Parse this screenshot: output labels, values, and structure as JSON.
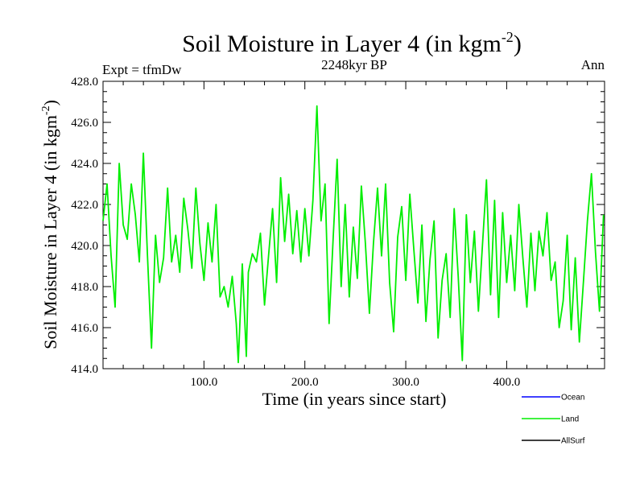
{
  "chart_data": {
    "type": "line",
    "title": "Soil Moisture in Layer 4 (in kgm",
    "title_superscript": "-2",
    "title_close": ")",
    "subtitle_center": "2248kyr BP",
    "subtitle_left": "Expt = tfmDw",
    "subtitle_right": "Ann",
    "xlabel": "Time (in years since start)",
    "ylabel": "Soil Moisture in Layer 4 (in kgm",
    "ylabel_superscript": "-2",
    "ylabel_close": ")",
    "xlim": [
      0,
      497
    ],
    "ylim": [
      414.0,
      428.0
    ],
    "x_ticks": [
      100,
      200,
      300,
      400
    ],
    "x_tick_labels": [
      "100.0",
      "200.0",
      "300.0",
      "400.0"
    ],
    "y_ticks": [
      414,
      416,
      418,
      420,
      422,
      424,
      426,
      428
    ],
    "y_tick_labels": [
      "414.0",
      "416.0",
      "418.0",
      "420.0",
      "422.0",
      "424.0",
      "426.0",
      "428.0"
    ],
    "grid": false,
    "legend_position": "bottom-right",
    "series": [
      {
        "name": "Ocean",
        "color": "#0000ff",
        "x": [],
        "values": []
      },
      {
        "name": "Land",
        "color": "#00ee00",
        "x": [
          0,
          4,
          8,
          12,
          16,
          20,
          24,
          28,
          32,
          36,
          40,
          44,
          48,
          52,
          56,
          60,
          64,
          68,
          72,
          76,
          80,
          84,
          88,
          92,
          96,
          100,
          104,
          108,
          112,
          116,
          120,
          124,
          128,
          132,
          134,
          138,
          142,
          144,
          148,
          152,
          156,
          160,
          164,
          168,
          172,
          176,
          180,
          184,
          188,
          192,
          196,
          200,
          204,
          208,
          212,
          216,
          220,
          224,
          228,
          232,
          236,
          240,
          244,
          248,
          252,
          256,
          260,
          264,
          268,
          272,
          276,
          280,
          284,
          288,
          292,
          296,
          300,
          304,
          308,
          312,
          316,
          320,
          324,
          328,
          332,
          336,
          340,
          344,
          348,
          352,
          356,
          360,
          364,
          368,
          372,
          376,
          380,
          384,
          388,
          392,
          396,
          400,
          404,
          408,
          412,
          416,
          420,
          424,
          428,
          432,
          436,
          440,
          444,
          448,
          452,
          456,
          460,
          464,
          468,
          472,
          476,
          480,
          484,
          488,
          492,
          496
        ],
        "values": [
          421.2,
          423.0,
          419.5,
          417.0,
          424.0,
          421.0,
          420.3,
          423.0,
          421.5,
          419.2,
          424.5,
          419.5,
          415.0,
          420.5,
          418.2,
          419.4,
          422.8,
          419.2,
          420.5,
          418.7,
          422.3,
          420.8,
          418.9,
          422.8,
          420.1,
          418.3,
          421.1,
          419.2,
          422.0,
          417.5,
          418.0,
          417.0,
          418.5,
          416.2,
          414.3,
          419.1,
          414.6,
          418.7,
          419.6,
          419.2,
          420.6,
          417.1,
          419.5,
          421.8,
          418.2,
          423.3,
          420.2,
          422.5,
          419.6,
          421.7,
          419.2,
          421.8,
          419.5,
          422.2,
          426.8,
          421.2,
          423.0,
          416.2,
          420.3,
          424.2,
          418.0,
          422.0,
          417.5,
          420.9,
          418.4,
          422.9,
          420.1,
          416.7,
          420.1,
          422.8,
          419.5,
          423.0,
          418.2,
          415.8,
          420.4,
          421.9,
          418.3,
          422.5,
          419.8,
          417.2,
          421.0,
          416.3,
          419.3,
          421.2,
          415.5,
          418.3,
          419.6,
          416.5,
          421.8,
          418.5,
          414.4,
          421.5,
          418.2,
          420.7,
          416.8,
          420.0,
          423.2,
          417.6,
          422.2,
          416.5,
          421.6,
          418.2,
          420.5,
          417.8,
          422.0,
          419.4,
          417.0,
          420.6,
          417.8,
          420.7,
          419.5,
          421.6,
          418.3,
          419.2,
          416.0,
          417.3,
          420.5,
          415.9,
          419.4,
          415.3,
          418.2,
          421.2,
          423.5,
          419.7,
          416.8,
          421.5
        ]
      },
      {
        "name": "AllSurf",
        "color": "#000000",
        "x": [],
        "values": []
      }
    ]
  }
}
